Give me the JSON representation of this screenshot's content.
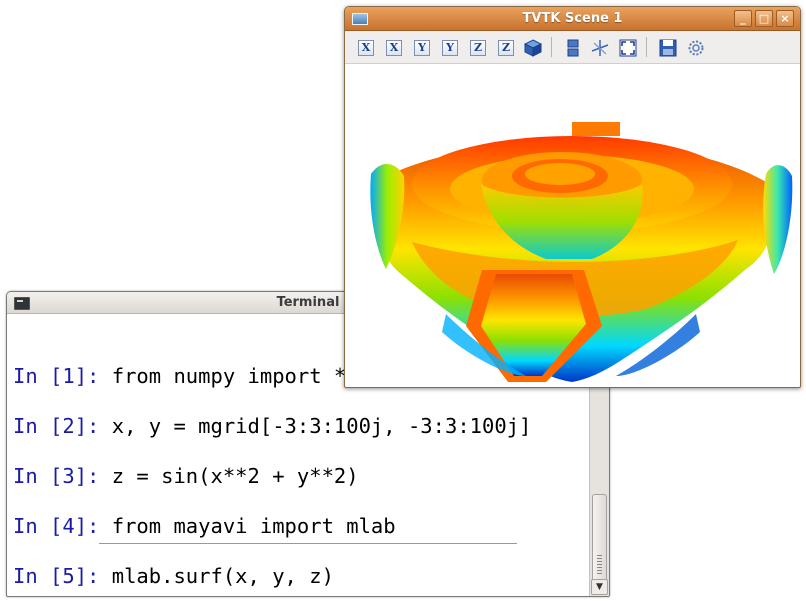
{
  "terminal": {
    "title": "Terminal",
    "lines": [
      {
        "prompt": "In [1]:",
        "code": " from numpy import *"
      },
      {
        "prompt": "In [2]:",
        "code": " x, y = mgrid[-3:3:100j, -3:3:100j]"
      },
      {
        "prompt": "In [3]:",
        "code": " z = sin(x**2 + y**2)"
      },
      {
        "prompt": "In [4]:",
        "code": " from mayavi import mlab"
      },
      {
        "prompt": "In [5]:",
        "code": " mlab.surf(x, y, z)"
      }
    ]
  },
  "scene": {
    "title": "TVTK Scene 1",
    "window_buttons": [
      "_",
      "□",
      "×"
    ],
    "toolbar": {
      "view_buttons": [
        "X",
        "X",
        "Y",
        "Y",
        "Z",
        "Z"
      ],
      "icons": [
        "iso-view-icon",
        "parallel-projection-icon",
        "axes-icon",
        "fullscreen-icon",
        "save-icon",
        "configure-icon"
      ]
    },
    "colors": {
      "accent": "#d9853f",
      "prompt": "#1a1aa6"
    }
  }
}
